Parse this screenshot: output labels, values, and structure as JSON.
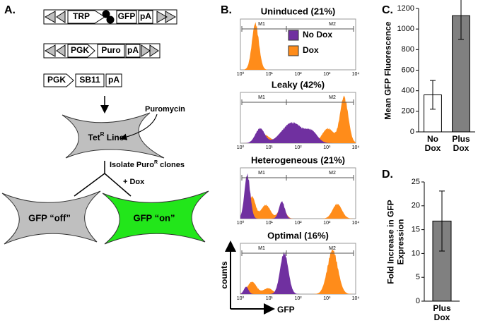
{
  "panel_a": {
    "label": "A.",
    "construct_1": [
      "TRP",
      "GFP",
      "pA"
    ],
    "construct_2": [
      "PGK",
      "Puro",
      "pA"
    ],
    "construct_3": [
      "PGK",
      "SB11",
      "pA"
    ],
    "puromycin": "Puromycin",
    "cell_line": [
      "Tet",
      "R",
      " Line"
    ],
    "isolate": [
      "Isolate Puro",
      "R",
      " clones"
    ],
    "dox": "+ Dox",
    "off": "GFP “off”",
    "on": "GFP “on”"
  },
  "panel_b": {
    "label": "B.",
    "legend": [
      {
        "name": "No Dox",
        "color": "#7030a0"
      },
      {
        "name": "Dox",
        "color": "#ff8c1a"
      }
    ],
    "histograms": [
      {
        "title": "Uninduced (21%)"
      },
      {
        "title": "Leaky (42%)"
      },
      {
        "title": "Heterogeneous (21%)"
      },
      {
        "title": "Optimal (16%)"
      }
    ],
    "gate_labels": [
      "M1",
      "M2"
    ],
    "x_tick_labels": [
      "10⁰",
      "10¹",
      "10²",
      "10³",
      "10⁴"
    ],
    "x_axis_label": "GFP",
    "y_axis_label": "counts"
  },
  "chart_data": [
    {
      "type": "bar",
      "panel_label": "C.",
      "y_axis_label": "Mean GFP Fluorescence",
      "categories": [
        "No Dox",
        "Plus Dox"
      ],
      "values": [
        360,
        1130
      ],
      "errors": [
        140,
        230
      ],
      "colors": [
        "#ffffff",
        "#808080"
      ],
      "annotation": "*",
      "ylim": [
        0,
        1200
      ],
      "yticks": [
        0,
        200,
        400,
        600,
        800,
        1000,
        1200
      ]
    },
    {
      "type": "bar",
      "panel_label": "D.",
      "y_axis_label": "Fold Increase in GFP Expression",
      "categories": [
        "Plus Dox"
      ],
      "values": [
        16.8
      ],
      "errors": [
        6.3
      ],
      "colors": [
        "#808080"
      ],
      "ylim": [
        0,
        25
      ],
      "yticks": [
        0,
        5,
        10,
        15,
        20,
        25
      ]
    }
  ]
}
